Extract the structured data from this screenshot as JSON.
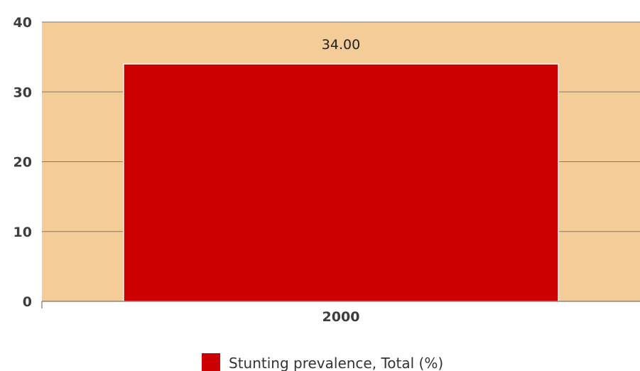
{
  "chart_data": {
    "type": "bar",
    "categories": [
      "2000"
    ],
    "series": [
      {
        "name": "Stunting prevalence, Total (%)",
        "values": [
          34.0
        ],
        "value_labels": [
          "34.00"
        ]
      }
    ],
    "title": "",
    "xlabel": "",
    "ylabel": "",
    "ylim": [
      0,
      40
    ],
    "yticks": [
      "0",
      "10",
      "20",
      "30",
      "40"
    ],
    "grid": true,
    "legend_position": "bottom-center"
  },
  "colors": {
    "plot_background": "#f4cc98",
    "bar": "#cc0000",
    "gridline": "#7a7a7a",
    "axis": "#555555"
  }
}
